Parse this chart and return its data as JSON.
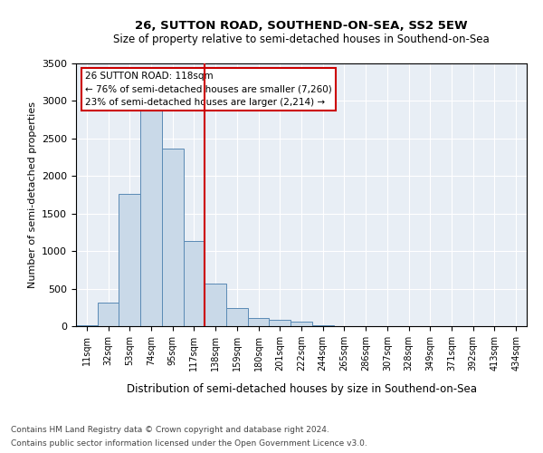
{
  "title": "26, SUTTON ROAD, SOUTHEND-ON-SEA, SS2 5EW",
  "subtitle": "Size of property relative to semi-detached houses in Southend-on-Sea",
  "xlabel": "Distribution of semi-detached houses by size in Southend-on-Sea",
  "ylabel": "Number of semi-detached properties",
  "footnote1": "Contains HM Land Registry data © Crown copyright and database right 2024.",
  "footnote2": "Contains public sector information licensed under the Open Government Licence v3.0.",
  "annotation_title": "26 SUTTON ROAD: 118sqm",
  "annotation_line1": "← 76% of semi-detached houses are smaller (7,260)",
  "annotation_line2": "23% of semi-detached houses are larger (2,214) →",
  "bar_color": "#c9d9e8",
  "bar_edge_color": "#5a8ab5",
  "vline_color": "#cc0000",
  "annotation_box_color": "#ffffff",
  "annotation_box_edge": "#cc0000",
  "background_color": "#e8eef5",
  "categories": [
    "11sqm",
    "32sqm",
    "53sqm",
    "74sqm",
    "95sqm",
    "117sqm",
    "138sqm",
    "159sqm",
    "180sqm",
    "201sqm",
    "222sqm",
    "244sqm",
    "265sqm",
    "286sqm",
    "307sqm",
    "328sqm",
    "349sqm",
    "371sqm",
    "392sqm",
    "413sqm",
    "434sqm"
  ],
  "values": [
    10,
    310,
    1760,
    3020,
    2360,
    1130,
    570,
    240,
    110,
    90,
    60,
    10,
    0,
    0,
    0,
    0,
    0,
    0,
    0,
    0,
    0
  ],
  "vline_x": 5.5,
  "ylim": [
    0,
    3500
  ],
  "yticks": [
    0,
    500,
    1000,
    1500,
    2000,
    2500,
    3000,
    3500
  ]
}
